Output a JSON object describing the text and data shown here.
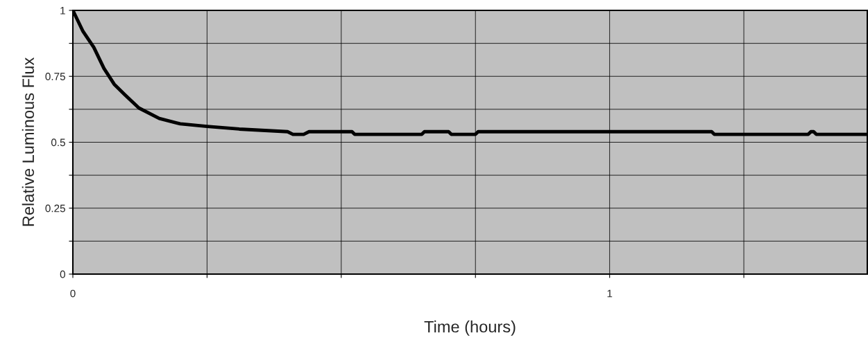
{
  "chart_data": {
    "type": "line",
    "xlabel": "Time (hours)",
    "ylabel": "Relative Luminous Flux",
    "x": [
      0,
      0.019,
      0.039,
      0.058,
      0.077,
      0.097,
      0.123,
      0.161,
      0.2,
      0.25,
      0.31,
      0.4,
      0.41,
      0.43,
      0.44,
      0.52,
      0.525,
      0.65,
      0.655,
      0.7,
      0.705,
      0.75,
      0.755,
      1.19,
      1.195,
      1.37,
      1.375,
      1.38,
      1.385,
      1.48
    ],
    "series": [
      {
        "color": "#000000",
        "values": [
          1,
          0.92,
          0.86,
          0.78,
          0.72,
          0.68,
          0.63,
          0.59,
          0.57,
          0.56,
          0.55,
          0.54,
          0.53,
          0.53,
          0.54,
          0.54,
          0.53,
          0.53,
          0.54,
          0.54,
          0.53,
          0.53,
          0.54,
          0.54,
          0.53,
          0.53,
          0.54,
          0.54,
          0.53,
          0.53
        ]
      }
    ],
    "xlim": [
      0,
      1.48
    ],
    "xticks": [
      0,
      {
        "value": 0.25,
        "label": null
      },
      {
        "value": 0.5,
        "label": null
      },
      {
        "value": 0.75,
        "label": null
      },
      1,
      {
        "value": 1.25,
        "label": null
      }
    ],
    "ylim": [
      0,
      1
    ],
    "yticks": [
      0,
      {
        "value": 0.125,
        "label": null
      },
      0.25,
      {
        "value": 0.375,
        "label": null
      },
      0.5,
      {
        "value": 0.625,
        "label": null
      },
      0.75,
      {
        "value": 0.875,
        "label": null
      },
      1
    ],
    "grid": true,
    "marker": "none",
    "line_style": "solid"
  }
}
